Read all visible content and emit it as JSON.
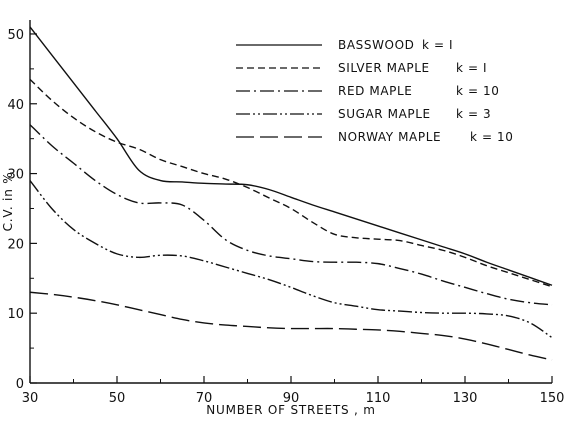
{
  "chart_data": {
    "type": "line",
    "xlabel": "NUMBER OF STREETS , m",
    "ylabel": "C.V. in %",
    "xlim": [
      30,
      150
    ],
    "ylim": [
      0,
      52
    ],
    "x_ticks": [
      30,
      50,
      70,
      90,
      110,
      130,
      150
    ],
    "y_ticks": [
      0,
      10,
      20,
      30,
      40,
      50
    ],
    "grid": false,
    "legend_position": "top-right",
    "series": [
      {
        "name": "BASSWOOD",
        "k": "k = I",
        "style": "solid",
        "points": [
          [
            30,
            51
          ],
          [
            35,
            47
          ],
          [
            40,
            43
          ],
          [
            45,
            39
          ],
          [
            50,
            35
          ],
          [
            55,
            30.5
          ],
          [
            60,
            29
          ],
          [
            65,
            28.8
          ],
          [
            70,
            28.6
          ],
          [
            75,
            28.5
          ],
          [
            80,
            28.4
          ],
          [
            85,
            27.7
          ],
          [
            90,
            26.6
          ],
          [
            95,
            25.5
          ],
          [
            100,
            24.5
          ],
          [
            105,
            23.5
          ],
          [
            110,
            22.5
          ],
          [
            115,
            21.5
          ],
          [
            120,
            20.5
          ],
          [
            125,
            19.5
          ],
          [
            130,
            18.5
          ],
          [
            135,
            17.3
          ],
          [
            140,
            16.2
          ],
          [
            145,
            15.1
          ],
          [
            150,
            14
          ]
        ]
      },
      {
        "name": "SILVER MAPLE",
        "k": "k = I",
        "style": "dashed",
        "points": [
          [
            30,
            43.5
          ],
          [
            35,
            40.5
          ],
          [
            40,
            38
          ],
          [
            45,
            36
          ],
          [
            50,
            34.5
          ],
          [
            55,
            33.5
          ],
          [
            60,
            32
          ],
          [
            65,
            31
          ],
          [
            70,
            30
          ],
          [
            75,
            29.2
          ],
          [
            80,
            28
          ],
          [
            85,
            26.5
          ],
          [
            90,
            25
          ],
          [
            95,
            23
          ],
          [
            100,
            21.3
          ],
          [
            105,
            20.8
          ],
          [
            110,
            20.6
          ],
          [
            115,
            20.4
          ],
          [
            120,
            19.7
          ],
          [
            125,
            19
          ],
          [
            130,
            18
          ],
          [
            135,
            16.8
          ],
          [
            140,
            15.8
          ],
          [
            145,
            14.8
          ],
          [
            150,
            13.8
          ]
        ]
      },
      {
        "name": "RED MAPLE",
        "k": "k = 10",
        "style": "dash-dot",
        "points": [
          [
            30,
            37
          ],
          [
            35,
            34
          ],
          [
            40,
            31.5
          ],
          [
            45,
            29
          ],
          [
            50,
            27
          ],
          [
            55,
            25.8
          ],
          [
            60,
            25.8
          ],
          [
            65,
            25.5
          ],
          [
            70,
            23.3
          ],
          [
            75,
            20.5
          ],
          [
            80,
            19
          ],
          [
            85,
            18.2
          ],
          [
            90,
            17.8
          ],
          [
            95,
            17.4
          ],
          [
            100,
            17.3
          ],
          [
            105,
            17.3
          ],
          [
            110,
            17.1
          ],
          [
            115,
            16.4
          ],
          [
            120,
            15.6
          ],
          [
            125,
            14.6
          ],
          [
            130,
            13.7
          ],
          [
            135,
            12.8
          ],
          [
            140,
            12
          ],
          [
            145,
            11.5
          ],
          [
            150,
            11.2
          ]
        ]
      },
      {
        "name": "SUGAR MAPLE",
        "k": "k = 3",
        "style": "dash-dot-dot",
        "points": [
          [
            30,
            29
          ],
          [
            35,
            25
          ],
          [
            40,
            22
          ],
          [
            45,
            20
          ],
          [
            50,
            18.5
          ],
          [
            55,
            18
          ],
          [
            60,
            18.3
          ],
          [
            65,
            18.2
          ],
          [
            70,
            17.5
          ],
          [
            75,
            16.6
          ],
          [
            80,
            15.7
          ],
          [
            85,
            14.8
          ],
          [
            90,
            13.7
          ],
          [
            95,
            12.5
          ],
          [
            100,
            11.5
          ],
          [
            105,
            11
          ],
          [
            110,
            10.5
          ],
          [
            115,
            10.3
          ],
          [
            120,
            10.1
          ],
          [
            125,
            10
          ],
          [
            130,
            10
          ],
          [
            135,
            9.9
          ],
          [
            140,
            9.6
          ],
          [
            145,
            8.6
          ],
          [
            150,
            6.5
          ]
        ]
      },
      {
        "name": "NORWAY MAPLE",
        "k": "k = 10",
        "style": "long-dash",
        "points": [
          [
            30,
            13
          ],
          [
            35,
            12.7
          ],
          [
            40,
            12.3
          ],
          [
            45,
            11.8
          ],
          [
            50,
            11.2
          ],
          [
            55,
            10.5
          ],
          [
            60,
            9.8
          ],
          [
            65,
            9.1
          ],
          [
            70,
            8.6
          ],
          [
            75,
            8.3
          ],
          [
            80,
            8.1
          ],
          [
            85,
            7.9
          ],
          [
            90,
            7.8
          ],
          [
            95,
            7.8
          ],
          [
            100,
            7.8
          ],
          [
            105,
            7.7
          ],
          [
            110,
            7.6
          ],
          [
            115,
            7.4
          ],
          [
            120,
            7.1
          ],
          [
            125,
            6.8
          ],
          [
            130,
            6.3
          ],
          [
            135,
            5.6
          ],
          [
            140,
            4.8
          ],
          [
            145,
            4
          ],
          [
            150,
            3.3
          ]
        ]
      }
    ]
  }
}
